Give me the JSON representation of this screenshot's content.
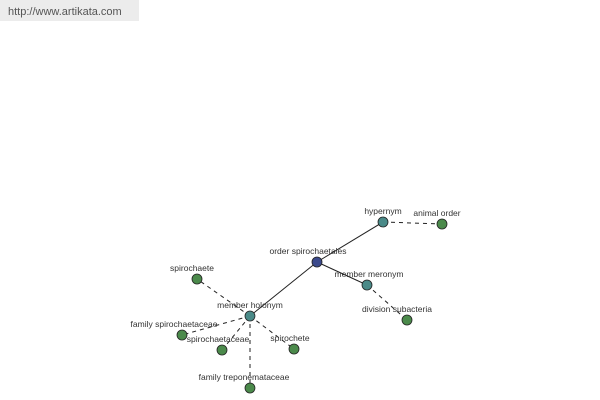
{
  "header": {
    "url": "http://www.artikata.com"
  },
  "nodes": [
    {
      "label": "order spirochaetales"
    },
    {
      "label": "hypernym"
    },
    {
      "label": "animal order"
    },
    {
      "label": "member meronym"
    },
    {
      "label": "division subacteria"
    },
    {
      "label": "member holonym"
    },
    {
      "label": "spirochaete"
    },
    {
      "label": "family spirochaetaceae"
    },
    {
      "label": "spirochaetaceae"
    },
    {
      "label": "spirochete"
    },
    {
      "label": "family treponemataceae"
    }
  ]
}
